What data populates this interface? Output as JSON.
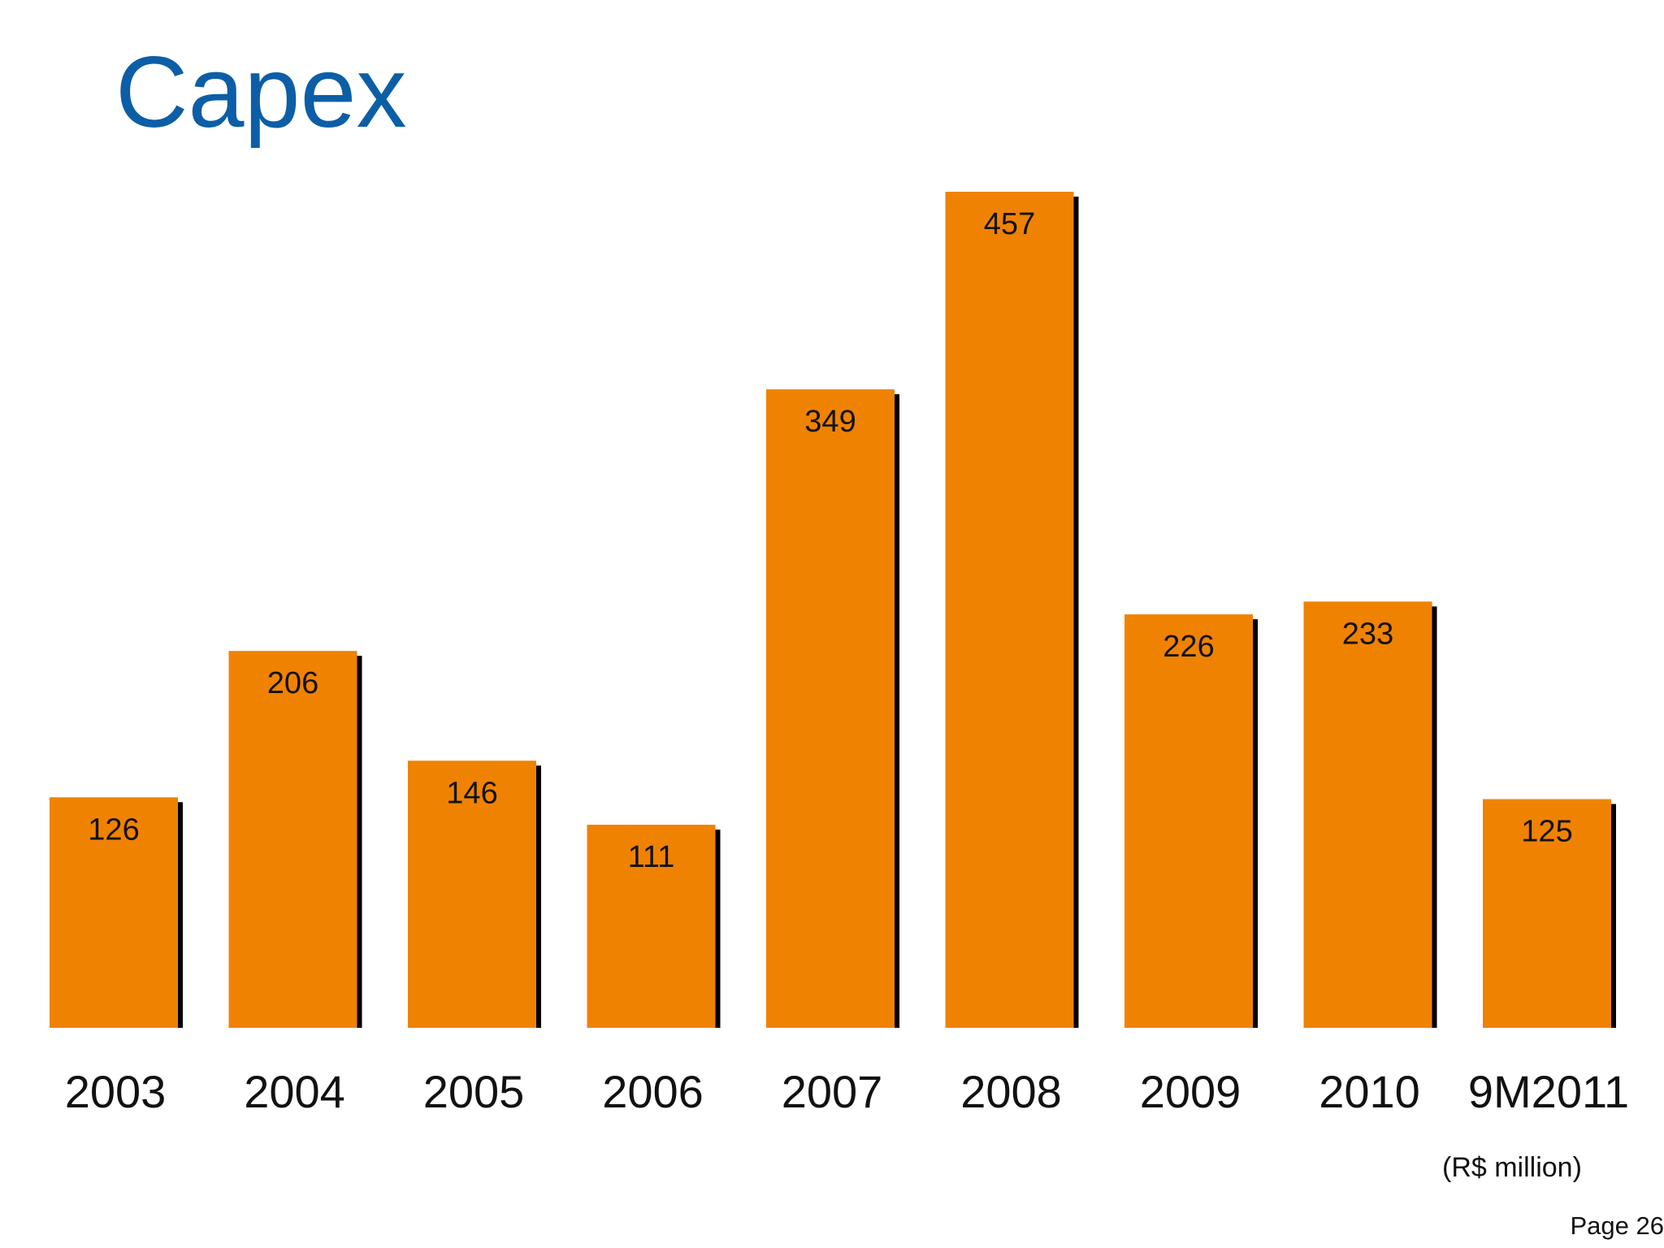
{
  "page": {
    "title": "Capex",
    "unit": "(R$ million)",
    "page_number": "Page 26"
  },
  "colors": {
    "bar": "#F08202",
    "shadow": "#000000",
    "title": "#0C5EA6"
  },
  "chart_data": {
    "type": "bar",
    "title": "Capex",
    "categories": [
      "2003",
      "2004",
      "2005",
      "2006",
      "2007",
      "2008",
      "2009",
      "2010",
      "9M2011"
    ],
    "values": [
      126,
      206,
      146,
      111,
      349,
      457,
      226,
      233,
      125
    ],
    "data_labels": [
      "126",
      "206",
      "146",
      "111",
      "349",
      "457",
      "226",
      "233",
      "125"
    ],
    "ylabel": "(R$ million)",
    "ylim": [
      0,
      457
    ],
    "grid": false,
    "legend": "none"
  }
}
